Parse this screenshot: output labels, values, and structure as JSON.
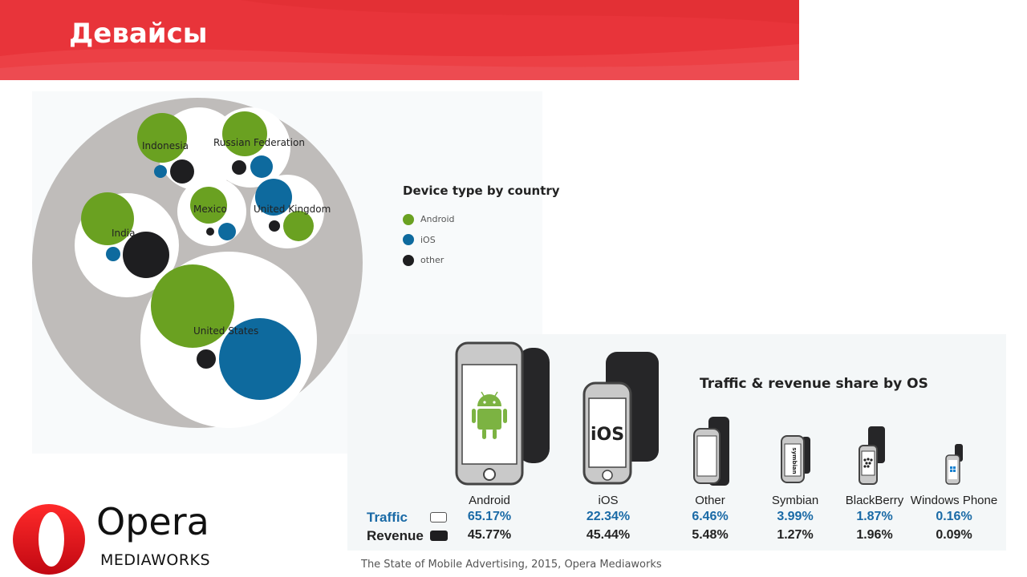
{
  "header": {
    "title": "Девайсы",
    "color": "#e8343a"
  },
  "bubble_chart": {
    "legend_title": "Device type by country",
    "legend": [
      {
        "label": "Android",
        "color": "#6aa121"
      },
      {
        "label": "iOS",
        "color": "#0e6a9e"
      },
      {
        "label": "other",
        "color": "#1e1e20"
      }
    ],
    "countries": [
      "Indonesia",
      "Russian Federation",
      "India",
      "Mexico",
      "United Kingdom",
      "United States"
    ]
  },
  "os_share": {
    "title": "Traffic & revenue share by OS",
    "row_labels": {
      "traffic": "Traffic",
      "revenue": "Revenue"
    },
    "platforms": [
      {
        "name": "Android",
        "traffic": "65.17%",
        "revenue": "45.77%"
      },
      {
        "name": "iOS",
        "traffic": "22.34%",
        "revenue": "45.44%"
      },
      {
        "name": "Other",
        "traffic": "6.46%",
        "revenue": "5.48%"
      },
      {
        "name": "Symbian",
        "traffic": "3.99%",
        "revenue": "1.27%"
      },
      {
        "name": "BlackBerry",
        "traffic": "1.87%",
        "revenue": "1.96%"
      },
      {
        "name": "Windows Phone",
        "traffic": "0.16%",
        "revenue": "0.09%"
      }
    ],
    "phone_screen_texts": {
      "ios": "iOS",
      "symbian": "symbian"
    }
  },
  "logo": {
    "brand": "Opera",
    "sub": "MEDIAWORKS"
  },
  "source": "The State of Mobile Advertising, 2015, Opera Mediaworks"
}
